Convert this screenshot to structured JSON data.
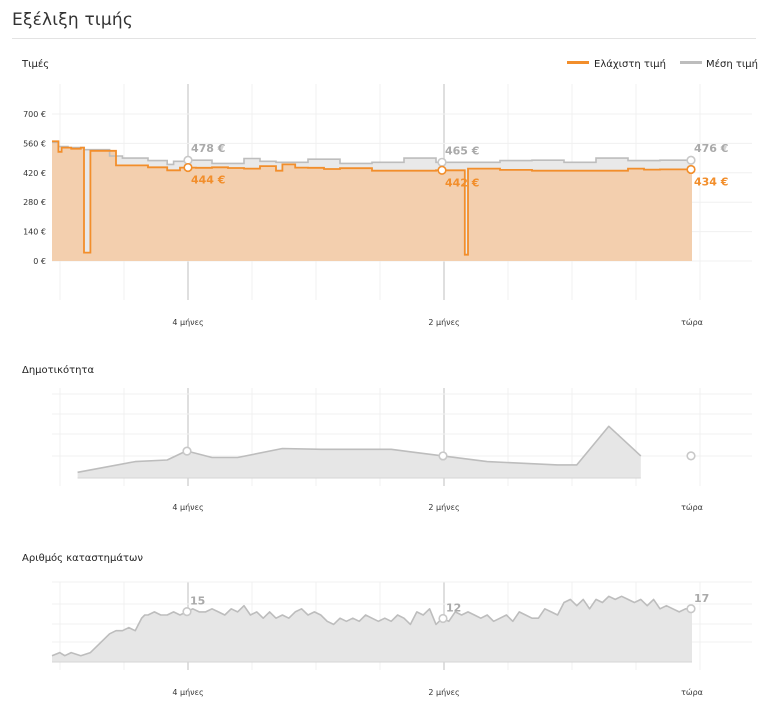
{
  "page": {
    "title": "Εξέλιξη τιμής"
  },
  "chart_data": [
    {
      "type": "area",
      "title": "Τιμές",
      "legend_position": "top-right",
      "x_ticks": [
        "4 μήνες",
        "2 μήνες",
        "τώρα"
      ],
      "y_ticks": [
        "700 €",
        "560 €",
        "420 €",
        "280 €",
        "140 €",
        "0 €"
      ],
      "ylim": [
        0,
        700
      ],
      "unit": "€",
      "colors": {
        "min": "#f28e2b",
        "min_fill": "#f3cfae",
        "avg": "#bdbdbd",
        "avg_fill": "#e9e9e9"
      },
      "series": [
        {
          "name": "Ελάχιστη τιμή",
          "key": "min",
          "x": [
            0,
            2,
            3,
            6,
            9,
            10,
            12,
            20,
            30,
            36,
            40,
            45,
            50,
            55,
            60,
            65,
            70,
            72,
            76,
            80,
            85,
            90,
            100,
            110,
            120,
            125,
            129,
            130,
            140,
            150,
            180,
            181,
            185,
            190,
            200
          ],
          "y": [
            570,
            520,
            540,
            535,
            540,
            40,
            525,
            455,
            446,
            432,
            445,
            444,
            446,
            443,
            440,
            452,
            430,
            460,
            445,
            444,
            438,
            442,
            430,
            430,
            432,
            432,
            30,
            440,
            434,
            430,
            440,
            440,
            435,
            436,
            434
          ]
        },
        {
          "name": "Μέση τιμή",
          "key": "avg",
          "x": [
            0,
            2,
            5,
            10,
            18,
            22,
            30,
            36,
            38,
            42,
            50,
            60,
            65,
            70,
            80,
            90,
            100,
            110,
            120,
            130,
            140,
            150,
            160,
            170,
            180,
            190,
            200
          ],
          "y": [
            565,
            545,
            540,
            530,
            500,
            490,
            478,
            460,
            475,
            480,
            465,
            488,
            475,
            470,
            485,
            465,
            470,
            490,
            470,
            470,
            478,
            480,
            470,
            490,
            478,
            480,
            476
          ]
        }
      ],
      "annotations": [
        {
          "x": 0.2,
          "avg": "478 €",
          "min": "444 €"
        },
        {
          "x": 0.6,
          "avg": "465 €",
          "min": "442 €"
        },
        {
          "x": 1.0,
          "avg": "476 €",
          "min": "434 €"
        }
      ]
    },
    {
      "type": "area",
      "title": "Δημοτικότητα",
      "x_ticks": [
        "4 μήνες",
        "2 μήνες",
        "τώρα"
      ],
      "ylim": [
        0,
        100
      ],
      "x": [
        0.04,
        0.13,
        0.18,
        0.21,
        0.25,
        0.29,
        0.36,
        0.42,
        0.47,
        0.53,
        0.56,
        0.68,
        0.79,
        0.82,
        0.87,
        0.92
      ],
      "values": [
        7,
        20,
        22,
        33,
        25,
        25,
        36,
        35,
        35,
        35,
        32,
        20,
        16,
        16,
        63,
        27
      ]
    },
    {
      "type": "area",
      "title": "Αριθμός καταστημάτων",
      "x_ticks": [
        "4 μήνες",
        "2 μήνες",
        "τώρα"
      ],
      "ylim": [
        0,
        23
      ],
      "annotations": [
        {
          "x": 0.2,
          "label": "15"
        },
        {
          "x": 0.6,
          "label": "12"
        },
        {
          "x": 1.0,
          "label": "17"
        }
      ],
      "x": [
        0,
        0.012,
        0.02,
        0.03,
        0.045,
        0.06,
        0.075,
        0.09,
        0.1,
        0.11,
        0.12,
        0.13,
        0.14,
        0.145,
        0.15,
        0.16,
        0.17,
        0.18,
        0.19,
        0.2,
        0.21,
        0.22,
        0.23,
        0.24,
        0.25,
        0.26,
        0.27,
        0.28,
        0.29,
        0.3,
        0.31,
        0.32,
        0.33,
        0.34,
        0.35,
        0.36,
        0.37,
        0.38,
        0.39,
        0.4,
        0.41,
        0.42,
        0.43,
        0.44,
        0.45,
        0.46,
        0.47,
        0.48,
        0.49,
        0.5,
        0.51,
        0.52,
        0.53,
        0.54,
        0.55,
        0.56,
        0.57,
        0.58,
        0.59,
        0.6,
        0.61,
        0.62,
        0.63,
        0.64,
        0.65,
        0.66,
        0.67,
        0.68,
        0.69,
        0.7,
        0.71,
        0.72,
        0.73,
        0.74,
        0.75,
        0.76,
        0.77,
        0.78,
        0.79,
        0.8,
        0.81,
        0.82,
        0.83,
        0.84,
        0.85,
        0.86,
        0.87,
        0.88,
        0.89,
        0.9,
        0.91,
        0.92,
        0.93,
        0.94,
        0.95,
        0.96,
        0.97,
        0.98,
        0.99,
        1.0
      ],
      "values": [
        2,
        3,
        2,
        3,
        2,
        3,
        6,
        9,
        10,
        10,
        11,
        10,
        14,
        15,
        15,
        16,
        15,
        15,
        16,
        15,
        16,
        17,
        16,
        16,
        17,
        16,
        15,
        17,
        16,
        18,
        15,
        16,
        14,
        16,
        14,
        15,
        14,
        16,
        17,
        15,
        16,
        15,
        13,
        12,
        14,
        13,
        14,
        13,
        15,
        14,
        13,
        14,
        13,
        15,
        14,
        12,
        16,
        15,
        17,
        12,
        14,
        13,
        16,
        15,
        16,
        15,
        14,
        15,
        13,
        14,
        15,
        13,
        16,
        15,
        14,
        14,
        17,
        16,
        15,
        19,
        20,
        18,
        20,
        17,
        20,
        19,
        21,
        20,
        21,
        20,
        19,
        20,
        18,
        20,
        17,
        18,
        17,
        16,
        17,
        17
      ]
    }
  ]
}
